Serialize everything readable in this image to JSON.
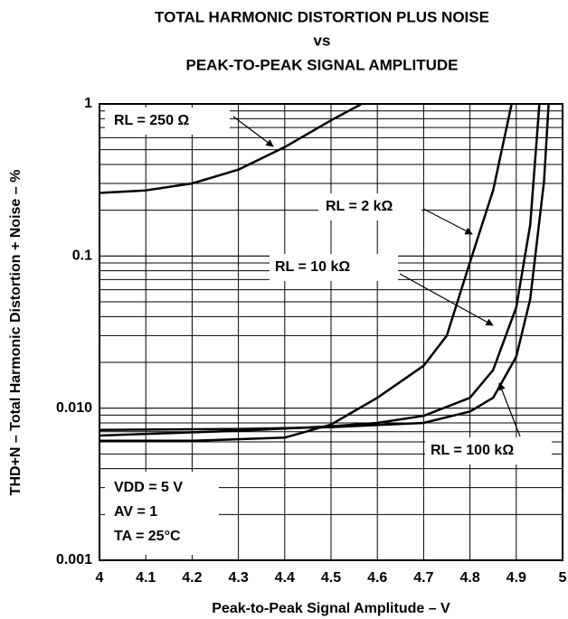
{
  "chart_data": {
    "type": "line",
    "title": [
      "TOTAL HARMONIC DISTORTION PLUS NOISE",
      "vs",
      "PEAK-TO-PEAK SIGNAL AMPLITUDE"
    ],
    "xlabel": "Peak-to-Peak Signal Amplitude – V",
    "ylabel": "THD+N – Total Harmonic Distortion + Noise – %",
    "xlim": [
      4,
      5
    ],
    "xticks": [
      4,
      4.1,
      4.2,
      4.3,
      4.4,
      4.5,
      4.6,
      4.7,
      4.8,
      4.9,
      5
    ],
    "ylim": [
      0.001,
      1
    ],
    "yticks": [
      0.001,
      {
        "value": 0.01,
        "label": "0.010"
      },
      0.1,
      1
    ],
    "log_y": true,
    "grid": true,
    "series": [
      {
        "name": "RL = 250 Ω",
        "color": "#000000",
        "x": [
          4,
          4.1,
          4.2,
          4.3,
          4.4,
          4.5,
          4.566
        ],
        "values": [
          0.26,
          0.27,
          0.3,
          0.37,
          0.52,
          0.78,
          1
        ]
      },
      {
        "name": "RL = 2 kΩ",
        "color": "#000000",
        "x": [
          4,
          4.2,
          4.4,
          4.5,
          4.6,
          4.7,
          4.75,
          4.8,
          4.85,
          4.89
        ],
        "values": [
          0.0061,
          0.0061,
          0.0064,
          0.0078,
          0.0117,
          0.019,
          0.03,
          0.091,
          0.27,
          1
        ]
      },
      {
        "name": "RL = 10 kΩ",
        "color": "#000000",
        "x": [
          4,
          4.3,
          4.5,
          4.6,
          4.7,
          4.8,
          4.85,
          4.9,
          4.93,
          4.95
        ],
        "values": [
          0.0066,
          0.0071,
          0.0076,
          0.008,
          0.0089,
          0.0117,
          0.0178,
          0.046,
          0.16,
          1
        ]
      },
      {
        "name": "RL = 100 kΩ",
        "color": "#000000",
        "x": [
          4,
          4.3,
          4.5,
          4.7,
          4.8,
          4.85,
          4.9,
          4.93,
          4.96,
          4.97
        ],
        "values": [
          0.0072,
          0.0073,
          0.0075,
          0.008,
          0.0095,
          0.0117,
          0.0218,
          0.052,
          0.31,
          1
        ]
      }
    ],
    "annotations": [
      "VDD = 5 V",
      "AV = 1",
      "TA = 25°C"
    ]
  }
}
